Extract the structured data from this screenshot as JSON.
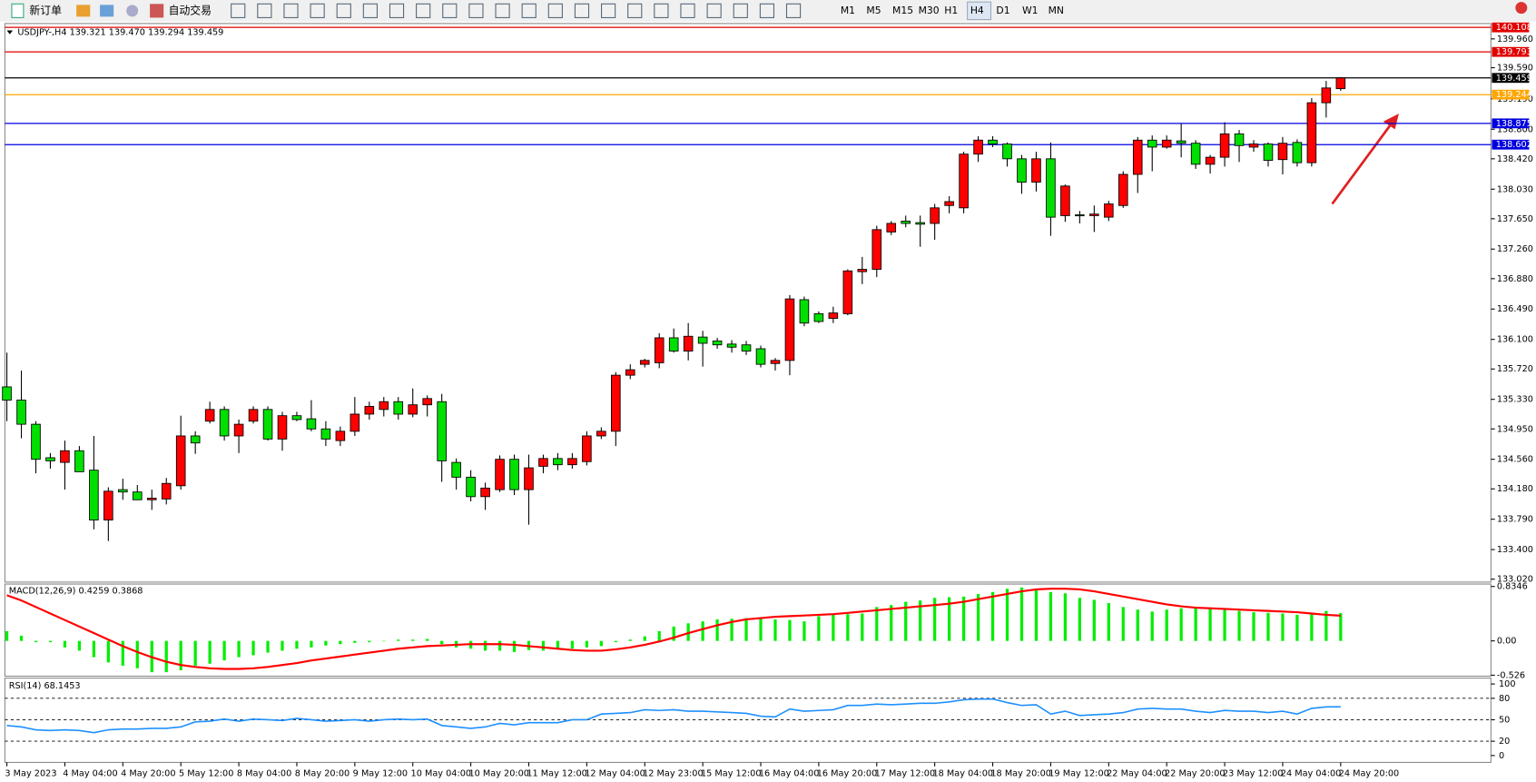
{
  "toolbar": {
    "new_order": "新订单",
    "auto_trading": "自动交易",
    "timeframes": [
      "M1",
      "M5",
      "M15",
      "M30",
      "H1",
      "H4",
      "D1",
      "W1",
      "MN"
    ]
  },
  "chart_data": [
    {
      "type": "candlestick",
      "title": "USDJPY-,H4  139.321 139.470 139.294 139.459",
      "categories": [
        "3 May 2023",
        null,
        null,
        null,
        "4 May 04:00",
        null,
        null,
        null,
        "4 May 20:00",
        null,
        null,
        null,
        "5 May 12:00",
        null,
        null,
        null,
        "8 May 04:00",
        null,
        null,
        null,
        "8 May 20:00",
        null,
        null,
        null,
        "9 May 12:00",
        null,
        null,
        null,
        "10 May 04:00",
        null,
        null,
        null,
        "10 May 20:00",
        null,
        null,
        null,
        "11 May 12:00",
        null,
        null,
        null,
        "12 May 04:00",
        null,
        null,
        null,
        "12 May 23:00",
        null,
        null,
        null,
        "15 May 12:00",
        null,
        null,
        null,
        "16 May 04:00",
        null,
        null,
        null,
        "16 May 20:00",
        null,
        null,
        null,
        "17 May 12:00",
        null,
        null,
        null,
        "18 May 04:00",
        null,
        null,
        null,
        "18 May 20:00",
        null,
        null,
        null,
        "19 May 12:00",
        null,
        null,
        null,
        "22 May 04:00",
        null,
        null,
        null,
        "22 May 20:00",
        null,
        null,
        null,
        "23 May 12:00",
        null,
        null,
        null,
        "24 May 04:00",
        null,
        null,
        null,
        "24 May 20:00"
      ],
      "open": [
        135.49,
        135.32,
        135.01,
        134.58,
        134.52,
        134.67,
        134.42,
        133.78,
        134.17,
        134.14,
        134.04,
        134.05,
        134.22,
        134.86,
        135.05,
        135.2,
        134.86,
        135.05,
        135.2,
        134.82,
        135.12,
        135.08,
        134.95,
        134.8,
        134.92,
        135.14,
        135.2,
        135.3,
        135.14,
        135.26,
        135.3,
        134.52,
        134.33,
        134.08,
        134.17,
        134.56,
        134.17,
        134.47,
        134.57,
        134.49,
        134.53,
        134.86,
        134.92,
        135.64,
        135.78,
        135.8,
        136.12,
        135.95,
        136.13,
        136.08,
        136.04,
        136.03,
        135.98,
        135.79,
        135.83,
        136.61,
        136.43,
        136.37,
        136.43,
        136.97,
        137.0,
        137.48,
        137.62,
        137.6,
        137.59,
        137.82,
        137.79,
        138.48,
        138.66,
        138.61,
        138.42,
        138.12,
        138.42,
        137.69,
        137.7,
        137.69,
        137.67,
        137.82,
        138.22,
        138.66,
        138.57,
        138.65,
        138.62,
        138.35,
        138.44,
        138.74,
        138.57,
        138.61,
        138.41,
        138.63,
        138.37,
        139.14,
        139.321
      ],
      "high": [
        135.93,
        135.7,
        135.05,
        134.64,
        134.8,
        134.73,
        134.86,
        134.2,
        134.31,
        134.23,
        134.17,
        134.32,
        135.12,
        134.92,
        135.3,
        135.24,
        135.07,
        135.24,
        135.24,
        135.17,
        135.17,
        135.32,
        135.05,
        134.98,
        135.36,
        135.3,
        135.36,
        135.36,
        135.47,
        135.38,
        135.4,
        134.57,
        134.42,
        134.26,
        134.61,
        134.62,
        134.62,
        134.62,
        134.64,
        134.64,
        134.92,
        134.97,
        135.68,
        135.78,
        135.85,
        136.18,
        136.24,
        136.31,
        136.21,
        136.12,
        136.09,
        136.08,
        136.02,
        135.86,
        136.67,
        136.65,
        136.46,
        136.52,
        137.0,
        137.16,
        137.56,
        137.62,
        137.69,
        137.69,
        137.84,
        137.94,
        138.51,
        138.71,
        138.71,
        138.63,
        138.47,
        138.51,
        138.63,
        138.09,
        137.75,
        137.82,
        137.88,
        138.26,
        138.7,
        138.72,
        138.72,
        138.87,
        138.66,
        138.47,
        138.89,
        138.79,
        138.66,
        138.63,
        138.7,
        138.67,
        139.2,
        139.42,
        139.47
      ],
      "low": [
        135.05,
        134.83,
        134.38,
        134.44,
        134.17,
        134.4,
        133.66,
        133.51,
        134.04,
        134.04,
        133.91,
        133.98,
        134.17,
        134.63,
        135.02,
        134.8,
        134.64,
        135.02,
        134.8,
        134.67,
        135.05,
        134.92,
        134.73,
        134.73,
        134.86,
        135.07,
        135.11,
        135.07,
        135.1,
        135.11,
        134.27,
        134.17,
        134.02,
        133.91,
        134.14,
        134.1,
        133.72,
        134.38,
        134.42,
        134.44,
        134.48,
        134.82,
        134.73,
        135.59,
        135.74,
        135.73,
        135.93,
        135.83,
        135.75,
        135.98,
        135.93,
        135.9,
        135.74,
        135.7,
        135.64,
        136.27,
        136.31,
        136.31,
        136.41,
        136.81,
        136.9,
        137.44,
        137.54,
        137.29,
        137.38,
        137.72,
        137.72,
        138.38,
        138.57,
        138.32,
        137.97,
        138.0,
        137.43,
        137.61,
        137.59,
        137.48,
        137.62,
        137.79,
        137.98,
        138.26,
        138.55,
        138.44,
        138.29,
        138.23,
        138.32,
        138.38,
        138.51,
        138.32,
        138.22,
        138.32,
        138.32,
        138.95,
        139.294
      ],
      "close": [
        135.32,
        135.01,
        134.56,
        134.54,
        134.67,
        134.4,
        133.78,
        134.15,
        134.14,
        134.04,
        134.06,
        134.25,
        134.86,
        134.77,
        135.2,
        134.86,
        135.01,
        135.2,
        134.82,
        135.12,
        135.07,
        134.95,
        134.82,
        134.92,
        135.14,
        135.24,
        135.3,
        135.14,
        135.26,
        135.34,
        134.54,
        134.33,
        134.08,
        134.19,
        134.56,
        134.17,
        134.45,
        134.57,
        134.49,
        134.57,
        134.86,
        134.92,
        135.64,
        135.71,
        135.83,
        136.12,
        135.95,
        136.14,
        136.05,
        136.03,
        136.0,
        135.95,
        135.78,
        135.83,
        136.62,
        136.31,
        136.33,
        136.44,
        136.98,
        137.0,
        137.51,
        137.59,
        137.59,
        137.58,
        137.79,
        137.87,
        138.48,
        138.66,
        138.61,
        138.42,
        138.12,
        138.42,
        137.67,
        138.07,
        137.69,
        137.71,
        137.84,
        138.22,
        138.66,
        138.57,
        138.66,
        138.62,
        138.35,
        138.44,
        138.74,
        138.59,
        138.61,
        138.4,
        138.62,
        138.37,
        139.14,
        139.33,
        139.459
      ],
      "up_color": "#ff0000",
      "down_color": "#00e000",
      "ylim": [
        132.995,
        140.12
      ],
      "yticks": [
        {
          "value": 139.96,
          "label": "139.960"
        },
        {
          "value": 139.59,
          "label": "139.590"
        },
        {
          "value": 139.19,
          "label": "139.190"
        },
        {
          "value": 138.8,
          "label": "138.800"
        },
        {
          "value": 138.42,
          "label": "138.420"
        },
        {
          "value": 138.03,
          "label": "138.030"
        },
        {
          "value": 137.65,
          "label": "137.650"
        },
        {
          "value": 137.26,
          "label": "137.260"
        },
        {
          "value": 136.88,
          "label": "136.880"
        },
        {
          "value": 136.49,
          "label": "136.490"
        },
        {
          "value": 136.1,
          "label": "136.100"
        },
        {
          "value": 135.72,
          "label": "135.720"
        },
        {
          "value": 135.33,
          "label": "135.330"
        },
        {
          "value": 134.95,
          "label": "134.950"
        },
        {
          "value": 134.56,
          "label": "134.560"
        },
        {
          "value": 134.18,
          "label": "134.180"
        },
        {
          "value": 133.79,
          "label": "133.790"
        },
        {
          "value": 133.4,
          "label": "133.400"
        },
        {
          "value": 133.02,
          "label": "133.020"
        }
      ],
      "levels": [
        {
          "value": 140.108,
          "color": "#e00000"
        },
        {
          "value": 139.793,
          "color": "#e00000"
        },
        {
          "value": 139.459,
          "color": "#000000"
        },
        {
          "value": 139.244,
          "color": "#ffa500"
        },
        {
          "value": 138.875,
          "color": "#0000e0"
        },
        {
          "value": 138.602,
          "color": "#0000e0"
        }
      ]
    },
    {
      "type": "macd",
      "title": "MACD(12,26,9) 0.4259 0.3868",
      "series": [
        {
          "kind": "histogram",
          "color": "#00ee00",
          "values": [
            0.15,
            0.08,
            -0.02,
            -0.02,
            -0.1,
            -0.15,
            -0.25,
            -0.33,
            -0.38,
            -0.42,
            -0.48,
            -0.48,
            -0.45,
            -0.38,
            -0.35,
            -0.3,
            -0.25,
            -0.22,
            -0.18,
            -0.15,
            -0.12,
            -0.1,
            -0.07,
            -0.05,
            -0.03,
            -0.02,
            0,
            0.02,
            0.02,
            0.03,
            -0.05,
            -0.1,
            -0.12,
            -0.15,
            -0.15,
            -0.17,
            -0.14,
            -0.15,
            -0.13,
            -0.12,
            -0.1,
            -0.08,
            -0.02,
            0.02,
            0.07,
            0.15,
            0.22,
            0.27,
            0.3,
            0.33,
            0.34,
            0.35,
            0.35,
            0.33,
            0.32,
            0.3,
            0.38,
            0.4,
            0.41,
            0.42,
            0.52,
            0.55,
            0.6,
            0.62,
            0.66,
            0.67,
            0.68,
            0.72,
            0.75,
            0.8,
            0.82,
            0.8,
            0.75,
            0.73,
            0.66,
            0.63,
            0.58,
            0.52,
            0.48,
            0.45,
            0.48,
            0.5,
            0.5,
            0.5,
            0.48,
            0.46,
            0.44,
            0.43,
            0.42,
            0.4,
            0.43,
            0.46,
            0.4259
          ]
        },
        {
          "kind": "line",
          "color": "#ff0000",
          "values": [
            0.7,
            0.62,
            0.52,
            0.42,
            0.32,
            0.22,
            0.12,
            0.02,
            -0.08,
            -0.17,
            -0.25,
            -0.32,
            -0.37,
            -0.4,
            -0.42,
            -0.43,
            -0.43,
            -0.42,
            -0.4,
            -0.37,
            -0.34,
            -0.3,
            -0.27,
            -0.24,
            -0.21,
            -0.18,
            -0.15,
            -0.12,
            -0.1,
            -0.08,
            -0.07,
            -0.06,
            -0.05,
            -0.05,
            -0.05,
            -0.06,
            -0.08,
            -0.1,
            -0.12,
            -0.14,
            -0.15,
            -0.15,
            -0.13,
            -0.1,
            -0.06,
            -0.01,
            0.05,
            0.12,
            0.18,
            0.24,
            0.29,
            0.33,
            0.35,
            0.37,
            0.38,
            0.39,
            0.4,
            0.41,
            0.43,
            0.45,
            0.47,
            0.49,
            0.51,
            0.53,
            0.55,
            0.57,
            0.6,
            0.64,
            0.68,
            0.72,
            0.76,
            0.79,
            0.8,
            0.8,
            0.79,
            0.76,
            0.72,
            0.68,
            0.64,
            0.6,
            0.56,
            0.53,
            0.51,
            0.5,
            0.49,
            0.48,
            0.47,
            0.46,
            0.45,
            0.44,
            0.42,
            0.4,
            0.3868
          ]
        }
      ],
      "ylim": [
        -0.526,
        0.8346
      ],
      "yticks": [
        0.8346,
        {
          "value": 0,
          "label": "0.00"
        },
        -0.526
      ]
    },
    {
      "type": "line",
      "title": "RSI(14) 68.1453",
      "color": "#1e90ff",
      "values": [
        42,
        40,
        36,
        35,
        36,
        35,
        32,
        36,
        37,
        37,
        38,
        38,
        40,
        47,
        48,
        51,
        48,
        51,
        50,
        49,
        52,
        50,
        48,
        49,
        50,
        48,
        50,
        51,
        50,
        51,
        42,
        40,
        38,
        40,
        45,
        43,
        46,
        46,
        46,
        50,
        50,
        58,
        59,
        60,
        64,
        63,
        64,
        62,
        62,
        61,
        60,
        59,
        55,
        54,
        65,
        62,
        63,
        64,
        70,
        70,
        72,
        71,
        72,
        73,
        73,
        75,
        78,
        79,
        79,
        74,
        70,
        71,
        58,
        62,
        56,
        57,
        58,
        60,
        65,
        66,
        65,
        65,
        62,
        60,
        63,
        62,
        62,
        60,
        62,
        58,
        66,
        68,
        68.1453
      ],
      "ylim": [
        0,
        100
      ],
      "yticks": [
        100,
        80,
        50,
        20,
        0
      ],
      "levels": [
        80,
        50,
        20
      ]
    }
  ]
}
